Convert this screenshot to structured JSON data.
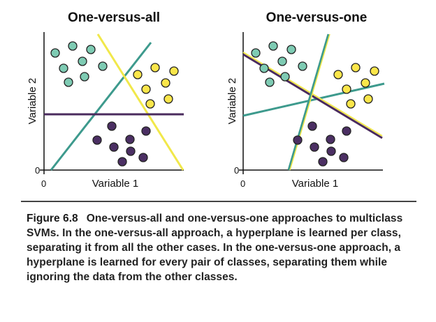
{
  "panels": [
    {
      "title": "One-versus-all",
      "x_axis_label": "Variable 1",
      "y_axis_label": "Variable 2",
      "x_origin_label": "0",
      "y_origin_label": "0",
      "hyperplane_colors": [
        "#3d9a8d",
        "#f1e84a",
        "#4a2b5e"
      ]
    },
    {
      "title": "One-versus-one",
      "x_axis_label": "Variable 1",
      "y_axis_label": "Variable 2",
      "x_origin_label": "0",
      "y_origin_label": "0",
      "hyperplane_colors": [
        "#3d9a8d",
        "#f1e84a",
        "#4a2b5e"
      ]
    }
  ],
  "classes": {
    "teal": {
      "fill": "#7ecbb3"
    },
    "yellow": {
      "fill": "#fbe64a"
    },
    "purple": {
      "fill": "#4b2f63"
    }
  },
  "caption": {
    "figure_number": "Figure 6.8",
    "text": "One-versus-all and one-versus-one approaches to multiclass SVMs. In the one-versus-all approach, a hyperplane is learned per class, separating it from all the other cases. In the one-versus-one approach, a hyperplane is learned for every pair of classes, separating them while ignoring the data from the other classes."
  }
}
